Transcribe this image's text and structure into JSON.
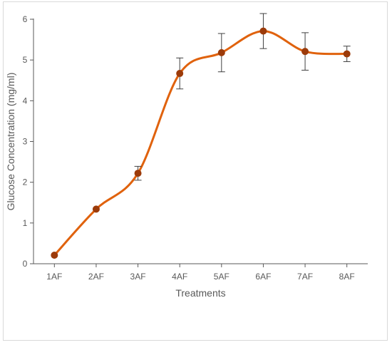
{
  "chart_data": {
    "type": "line",
    "title": "",
    "xlabel": "Treatments",
    "ylabel": "Glucose Concentration (mg/ml)",
    "ylim": [
      0,
      6
    ],
    "yticks": [
      0,
      1,
      2,
      3,
      4,
      5,
      6
    ],
    "categories": [
      "1AF",
      "2AF",
      "3AF",
      "4AF",
      "5AF",
      "6AF",
      "7AF",
      "8AF"
    ],
    "series": [
      {
        "values": [
          0.21,
          1.34,
          2.22,
          4.67,
          5.18,
          5.71,
          5.21,
          5.15
        ],
        "error": [
          0,
          0,
          0.17,
          0.38,
          0.47,
          0.43,
          0.46,
          0.19
        ],
        "smooth": true,
        "line_color": "#e0620d",
        "marker_color": "#9c3b0a"
      }
    ],
    "grid": false,
    "legend": "none"
  }
}
